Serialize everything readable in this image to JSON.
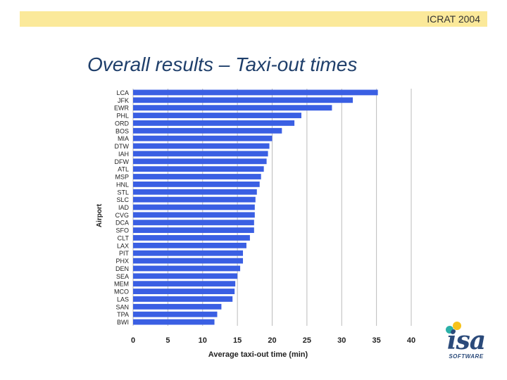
{
  "header": {
    "text": "ICRAT 2004"
  },
  "slide": {
    "title": "Overall results – Taxi-out times"
  },
  "colors": {
    "bar": "#3a5fe3",
    "header_band": "#fbe99a",
    "title": "#1f3f6b",
    "grid": "#bbbbbb"
  },
  "chart_data": {
    "type": "bar",
    "orientation": "horizontal",
    "title": "",
    "xlabel": "Average taxi-out time (min)",
    "ylabel": "Airport",
    "xlim": [
      0,
      40
    ],
    "xticks": [
      0,
      5,
      10,
      15,
      20,
      25,
      30,
      35,
      40
    ],
    "grid": true,
    "categories": [
      "LCA",
      "JFK",
      "EWR",
      "PHL",
      "ORD",
      "BOS",
      "MIA",
      "DTW",
      "IAH",
      "DFW",
      "ATL",
      "MSP",
      "HNL",
      "STL",
      "SLC",
      "IAD",
      "CVG",
      "DCA",
      "SFO",
      "CLT",
      "LAX",
      "PIT",
      "PHX",
      "DEN",
      "SEA",
      "MEM",
      "MCO",
      "LAS",
      "SAN",
      "TPA",
      "BWI"
    ],
    "values": [
      35.2,
      31.6,
      28.6,
      24.2,
      23.2,
      21.4,
      20.0,
      19.6,
      19.4,
      19.2,
      18.8,
      18.4,
      18.2,
      17.8,
      17.6,
      17.5,
      17.5,
      17.4,
      17.4,
      16.8,
      16.3,
      15.8,
      15.8,
      15.4,
      15.0,
      14.7,
      14.6,
      14.3,
      12.7,
      12.1,
      11.7
    ]
  },
  "logo": {
    "name": "isa",
    "sub": "SOFTWARE"
  }
}
